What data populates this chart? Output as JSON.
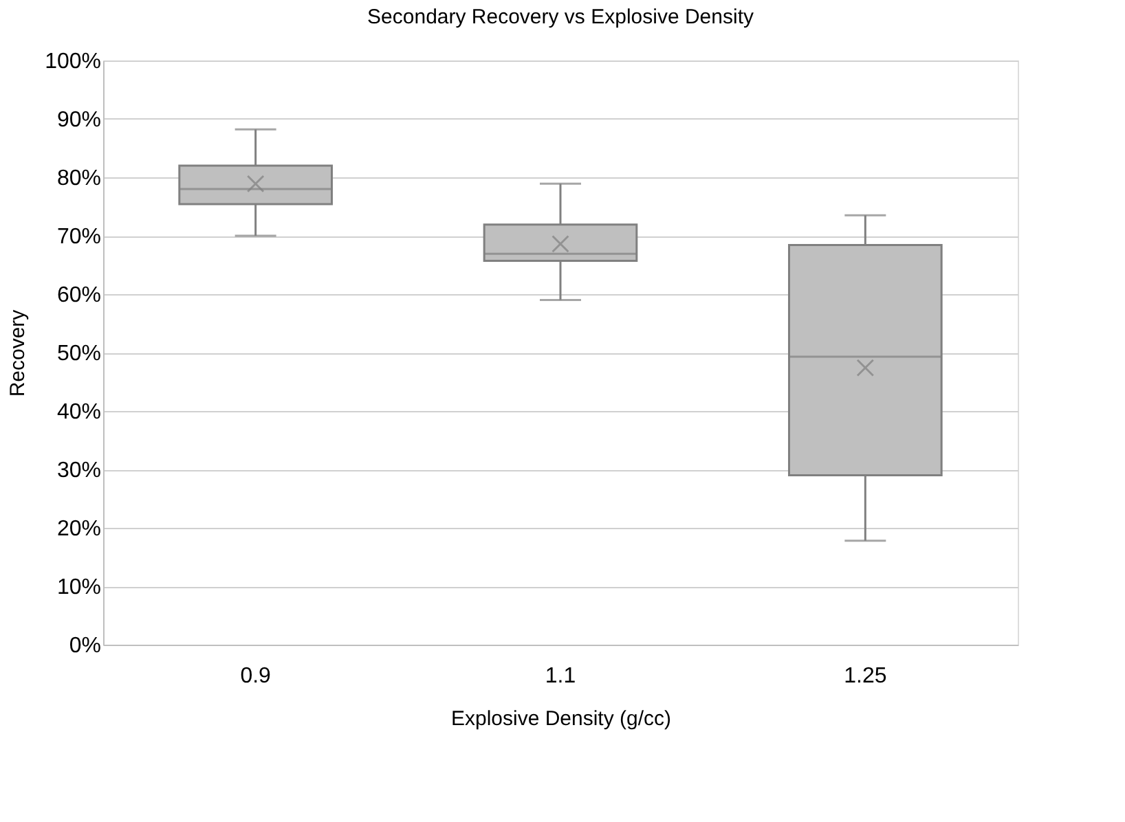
{
  "chart_data": {
    "type": "box",
    "title": "Secondary Recovery vs Explosive Density",
    "xlabel": "Explosive Density (g/cc)",
    "ylabel": "Recovery",
    "categories": [
      "0.9",
      "1.1",
      "1.25"
    ],
    "boxes": [
      {
        "low": 70,
        "q1": 75.4,
        "median": 78,
        "q3": 82,
        "high": 88.2,
        "mean": 78.9
      },
      {
        "low": 59,
        "q1": 65.7,
        "median": 66.9,
        "q3": 71.9,
        "high": 78.9,
        "mean": 68.6
      },
      {
        "low": 17.8,
        "q1": 29,
        "median": 49.3,
        "q3": 68.4,
        "high": 73.5,
        "mean": 47.4
      }
    ],
    "color": "#bfbfbf",
    "grid": "y",
    "ylim": [
      0,
      100
    ],
    "yticks": [
      {
        "value": 0,
        "label": "0%"
      },
      {
        "value": 10,
        "label": "10%"
      },
      {
        "value": 20,
        "label": "20%"
      },
      {
        "value": 30,
        "label": "30%"
      },
      {
        "value": 40,
        "label": "40%"
      },
      {
        "value": 50,
        "label": "50%"
      },
      {
        "value": 60,
        "label": "60%"
      },
      {
        "value": 70,
        "label": "70%"
      },
      {
        "value": 80,
        "label": "80%"
      },
      {
        "value": 90,
        "label": "90%"
      },
      {
        "value": 100,
        "label": "100%"
      }
    ]
  }
}
